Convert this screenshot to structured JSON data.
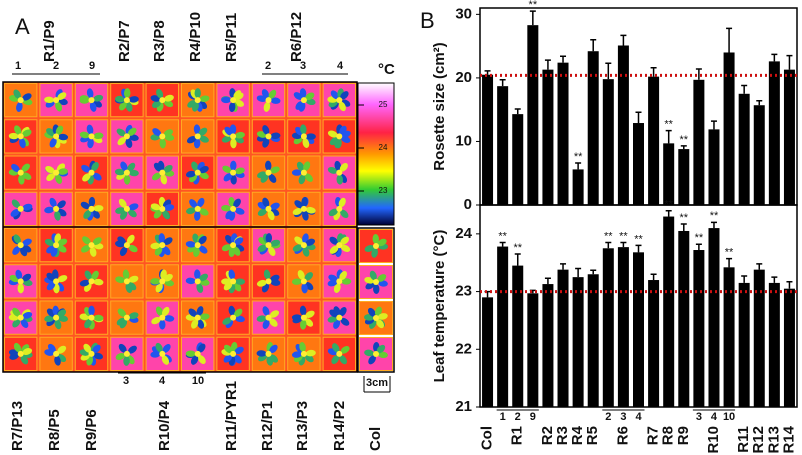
{
  "panel_a": {
    "label": "A",
    "top_labels": [
      "R1/P9",
      "R2/P7",
      "R3/P8",
      "R4/P10",
      "R5/P11",
      "R6/P12"
    ],
    "top_groups": [
      [
        "1",
        "2",
        "9"
      ],
      [
        "2",
        "3",
        "4"
      ]
    ],
    "bottom_labels": [
      "R7/P13",
      "R8/P5",
      "R9/P6",
      "R10/P4",
      "R11/PYR1",
      "R12/P1",
      "R13/P3",
      "R14/P2",
      "Col"
    ],
    "bottom_group": [
      "3",
      "4",
      "10"
    ],
    "scale_unit": "°C",
    "scale_ticks": [
      25,
      24,
      23
    ],
    "scale_bar": "3cm"
  },
  "chart_data": [
    {
      "type": "bar",
      "panel_label": "B",
      "y_label": "Rosette size (cm²)",
      "values": [
        20.5,
        18.7,
        14.3,
        28.3,
        21.3,
        22.4,
        5.6,
        24.2,
        19.8,
        25.1,
        12.9,
        20.2,
        9.7,
        8.8,
        19.7,
        11.9,
        24.0,
        17.5,
        15.7,
        22.6,
        21.3
      ],
      "errors": [
        0.6,
        1.0,
        0.8,
        2.2,
        1.5,
        1.0,
        1.0,
        1.8,
        2.5,
        1.6,
        1.7,
        1.4,
        2.0,
        0.5,
        1.7,
        1.3,
        3.8,
        1.3,
        0.7,
        1.1,
        2.2
      ],
      "significance": [
        null,
        null,
        null,
        "**",
        null,
        null,
        "**",
        null,
        null,
        null,
        null,
        null,
        "**",
        "**",
        null,
        null,
        null,
        null,
        null,
        null,
        null
      ],
      "color": "#000000",
      "reference_line": 20.4,
      "reference_color": "#cc1111",
      "ylim": [
        0,
        31
      ],
      "yticks": [
        0,
        10,
        20,
        30
      ]
    },
    {
      "type": "bar",
      "y_label": "Leaf temperature (°C)",
      "categories": [
        "Col",
        null,
        "R1",
        null,
        "R2",
        "R3",
        "R4",
        "R5",
        null,
        "R6",
        null,
        "R7",
        "R8",
        "R9",
        null,
        "R10",
        null,
        "R11",
        "R12",
        "R13",
        "R14"
      ],
      "bar_labels": [
        null,
        "1",
        "2",
        "9",
        null,
        null,
        null,
        null,
        "2",
        "3",
        "4",
        null,
        null,
        null,
        "3",
        "4",
        "10",
        null,
        null,
        null,
        null
      ],
      "values": [
        22.9,
        23.78,
        23.45,
        22.97,
        23.13,
        23.38,
        23.25,
        23.3,
        23.75,
        23.77,
        23.68,
        23.2,
        24.3,
        24.05,
        23.72,
        24.1,
        23.42,
        23.15,
        23.38,
        23.15,
        23.05
      ],
      "errors": [
        0.1,
        0.07,
        0.2,
        0.05,
        0.1,
        0.1,
        0.15,
        0.07,
        0.1,
        0.08,
        0.12,
        0.1,
        0.1,
        0.12,
        0.1,
        0.1,
        0.15,
        0.12,
        0.1,
        0.1,
        0.12
      ],
      "significance": [
        null,
        "**",
        "**",
        null,
        null,
        null,
        null,
        null,
        "**",
        "**",
        "**",
        null,
        "**",
        "**",
        "**",
        "**",
        "**",
        null,
        null,
        null,
        null
      ],
      "color": "#000000",
      "reference_line": 23.0,
      "reference_color": "#cc1111",
      "ylim": [
        21,
        24.5
      ],
      "yticks": [
        21,
        22,
        23,
        24
      ]
    }
  ]
}
